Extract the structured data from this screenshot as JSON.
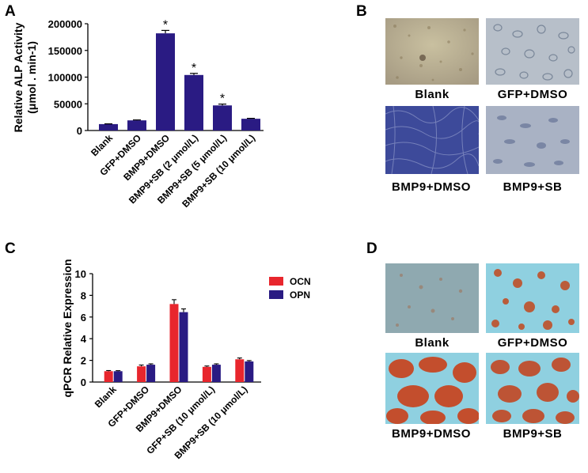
{
  "panels": {
    "a": "A",
    "b": "B",
    "c": "C",
    "d": "D"
  },
  "chart_data": [
    {
      "type": "bar",
      "panel": "A",
      "ylabel": "Relative ALP Activity",
      "ylabel2": "(μmol . min-1)",
      "ylim": [
        0,
        200000
      ],
      "yticks": [
        0,
        50000,
        100000,
        150000,
        200000
      ],
      "categories": [
        "Blank",
        "GFP+DMSO",
        "BMP9+DMSO",
        "BMP9+SB (2 μmol/L)",
        "BMP9+SB (5 μmol/L)",
        "BMP9+SB (10 μmol/L)"
      ],
      "values": [
        12000,
        19000,
        182000,
        104000,
        47000,
        22000
      ],
      "errors": [
        500,
        800,
        5500,
        3000,
        2500,
        800
      ],
      "significance": [
        "",
        "",
        "*",
        "*",
        "*",
        ""
      ],
      "color": "#2a1b83"
    },
    {
      "type": "bar",
      "panel": "C",
      "ylabel": "qPCR Relative Expression",
      "ylim": [
        0,
        10
      ],
      "yticks": [
        0,
        2,
        4,
        6,
        8,
        10
      ],
      "categories": [
        "Blank",
        "GFP+DMSO",
        "BMP9+DMSO",
        "GFP+SB (10 μmol/L)",
        "BMP9+SB (10 μmol/L)"
      ],
      "series": [
        {
          "name": "OCN",
          "values": [
            1.0,
            1.45,
            7.2,
            1.4,
            2.1
          ],
          "errors": [
            0.06,
            0.12,
            0.4,
            0.08,
            0.12
          ],
          "color": "#e8262d"
        },
        {
          "name": "OPN",
          "values": [
            1.0,
            1.6,
            6.45,
            1.6,
            1.9
          ],
          "errors": [
            0.05,
            0.08,
            0.3,
            0.08,
            0.08
          ],
          "color": "#2a1b83"
        }
      ]
    }
  ],
  "micrographs": {
    "b": [
      "Blank",
      "GFP+DMSO",
      "BMP9+DMSO",
      "BMP9+SB"
    ],
    "d": [
      "Blank",
      "GFP+DMSO",
      "BMP9+DMSO",
      "BMP9+SB"
    ]
  },
  "colors": {
    "bar": "#2a1b83",
    "ocn": "#e8262d",
    "opn": "#2a1b83"
  }
}
